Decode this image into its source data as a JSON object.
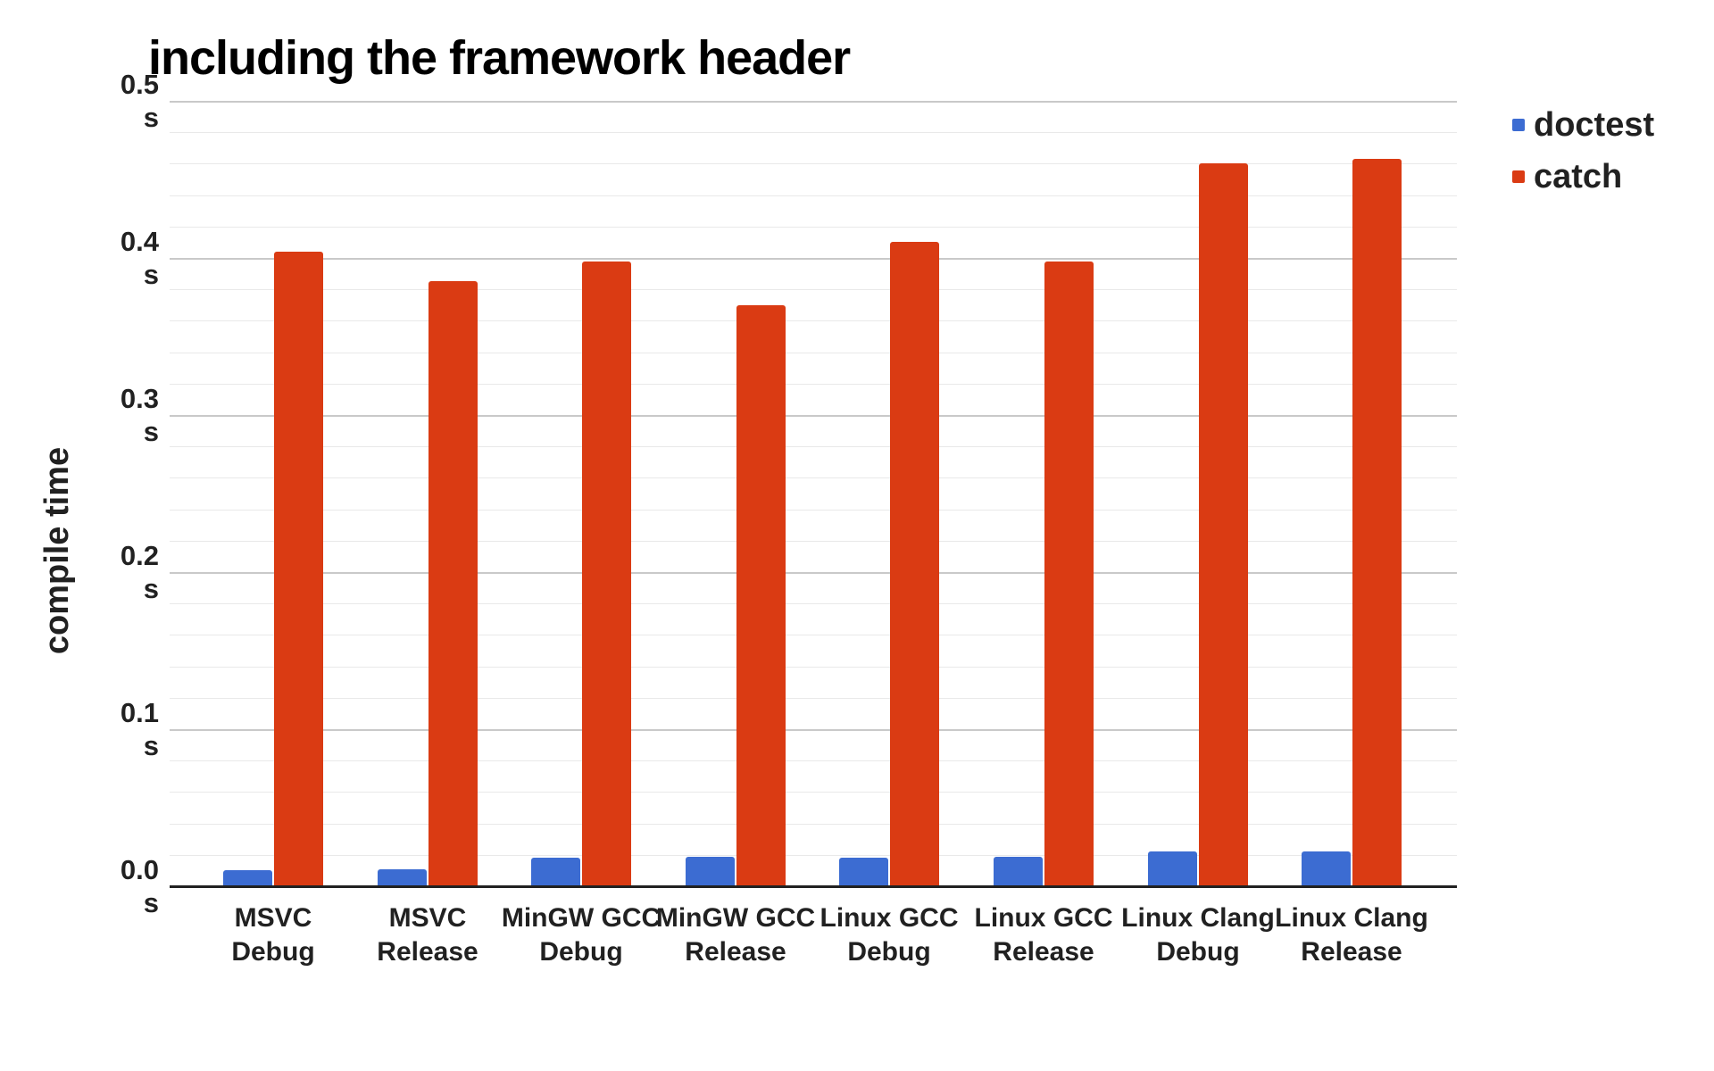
{
  "chart_data": {
    "type": "bar",
    "title": "including the framework header",
    "ylabel": "compile time",
    "y_unit": "s",
    "ylim": [
      0,
      0.5
    ],
    "y_major_step": 0.1,
    "y_minor_step": 0.02,
    "y_ticks": [
      "0.0",
      "0.1",
      "0.2",
      "0.3",
      "0.4",
      "0.5"
    ],
    "grid": true,
    "legend_position": "right",
    "categories": [
      [
        "MSVC",
        "Debug"
      ],
      [
        "MSVC",
        "Release"
      ],
      [
        "MinGW GCC",
        "Debug"
      ],
      [
        "MinGW GCC",
        "Release"
      ],
      [
        "Linux GCC",
        "Debug"
      ],
      [
        "Linux GCC",
        "Release"
      ],
      [
        "Linux Clang",
        "Debug"
      ],
      [
        "Linux Clang",
        "Release"
      ]
    ],
    "series": [
      {
        "name": "doctest",
        "color": "#3c6cd2",
        "values": [
          0.01,
          0.011,
          0.018,
          0.019,
          0.018,
          0.019,
          0.022,
          0.022
        ]
      },
      {
        "name": "catch",
        "color": "#da3b13",
        "values": [
          0.404,
          0.385,
          0.398,
          0.37,
          0.41,
          0.398,
          0.46,
          0.463
        ]
      }
    ]
  }
}
